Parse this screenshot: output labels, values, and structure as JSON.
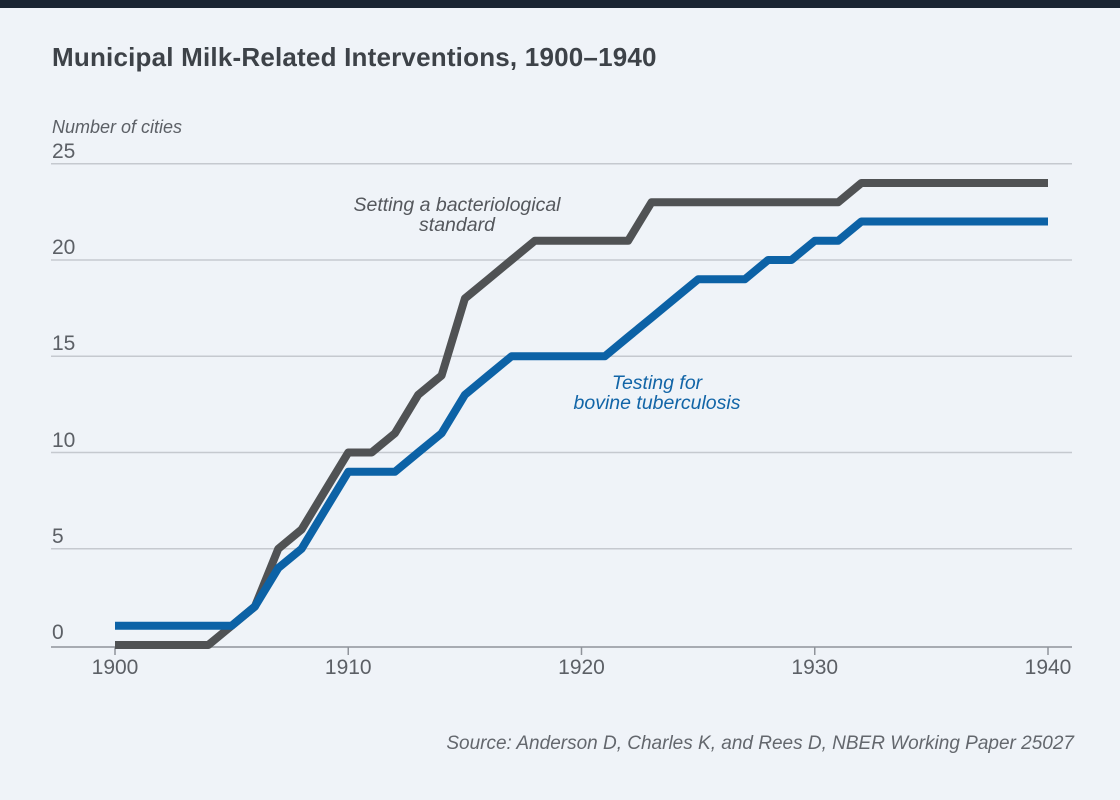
{
  "page": {
    "title": "Municipal Milk-Related Interventions, 1900–1940",
    "y_axis_title": "Number of cities",
    "source_note": "Source: Anderson D, Charles K, and Rees D, NBER Working Paper 25027"
  },
  "axes": {
    "y_ticks": [
      "25",
      "20",
      "15",
      "10",
      "5",
      "0"
    ],
    "x_ticks": [
      "1900",
      "1910",
      "1920",
      "1930",
      "1940"
    ]
  },
  "colors": {
    "background": "#eff3f8",
    "top_bar": "#1a2533",
    "gridline": "#c5c9cf",
    "axis_line": "#8f939a",
    "series_standard": "#505254",
    "series_tb": "#0c62a6"
  },
  "chart_data": {
    "type": "line",
    "title": "Municipal Milk-Related Interventions, 1900–1940",
    "xlabel": "",
    "ylabel": "Number of cities",
    "xlim": [
      1900,
      1940
    ],
    "ylim": [
      0,
      25
    ],
    "grid": true,
    "legend_position": "inline-annotations",
    "x": [
      1900,
      1901,
      1902,
      1903,
      1904,
      1905,
      1906,
      1907,
      1908,
      1909,
      1910,
      1911,
      1912,
      1913,
      1914,
      1915,
      1916,
      1917,
      1918,
      1919,
      1920,
      1921,
      1922,
      1923,
      1924,
      1925,
      1926,
      1927,
      1928,
      1929,
      1930,
      1931,
      1932,
      1933,
      1934,
      1935,
      1936,
      1937,
      1938,
      1939,
      1940
    ],
    "series": [
      {
        "name": "Setting a bacteriological standard",
        "label_line1": "Setting a bacteriological",
        "label_line2": "standard",
        "color": "#505254",
        "values": [
          0,
          0,
          0,
          0,
          0,
          1,
          2,
          5,
          6,
          8,
          10,
          10,
          11,
          13,
          14,
          18,
          19,
          20,
          21,
          21,
          21,
          21,
          21,
          23,
          23,
          23,
          23,
          23,
          23,
          23,
          23,
          23,
          24,
          24,
          24,
          24,
          24,
          24,
          24,
          24,
          24
        ]
      },
      {
        "name": "Testing for bovine tuberculosis",
        "label_line1": "Testing for",
        "label_line2": "bovine tuberculosis",
        "color": "#0c62a6",
        "values": [
          1,
          1,
          1,
          1,
          1,
          1,
          2,
          4,
          5,
          7,
          9,
          9,
          9,
          10,
          11,
          13,
          14,
          15,
          15,
          15,
          15,
          15,
          16,
          17,
          18,
          19,
          19,
          19,
          20,
          20,
          21,
          21,
          22,
          22,
          22,
          22,
          22,
          22,
          22,
          22,
          22
        ]
      }
    ],
    "source_note": "Source: Anderson D, Charles K, and Rees D, NBER Working Paper 25027"
  }
}
